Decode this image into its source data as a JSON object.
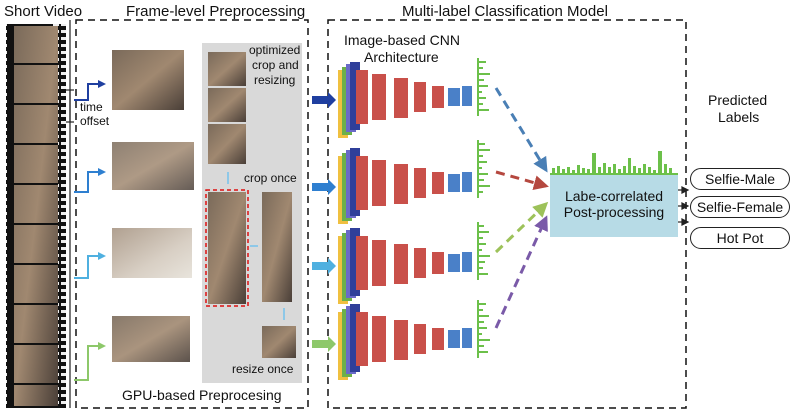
{
  "titles": {
    "short_video": "Short Video",
    "frame_level": "Frame-level Preprocessing",
    "multi_label": "Multi-label Classification Model"
  },
  "preprocessing": {
    "time_offset_line1": "time",
    "time_offset_line2": "offset",
    "optimized_line1": "optimized",
    "optimized_line2": "crop and",
    "optimized_line3": "resizing",
    "crop_once": "crop once",
    "resize_once": "resize once",
    "gpu_label": "GPU-based Preprocesing"
  },
  "model": {
    "cnn_line1": "Image-based CNN",
    "cnn_line2": "Architecture",
    "post_line1": "Labe-correlated",
    "post_line2": "Post-processing"
  },
  "labels": {
    "heading_line1": "Predicted",
    "heading_line2": "Labels",
    "items": [
      "Selfie-Male",
      "Selfie-Female",
      "Hot Pot"
    ]
  },
  "colors": {
    "arrow_row1": "#1f3fa0",
    "arrow_row2": "#2e7fd0",
    "arrow_row3": "#4fb0e0",
    "arrow_row4": "#8dc86a",
    "dash_row1": "#4a7fb5",
    "dash_row2": "#b5483f",
    "dash_row3": "#9dc25a",
    "dash_row4": "#7a5aa8",
    "histogram_green": "#6cc04a",
    "post_box": "#b7dbe6",
    "gray_panel": "#d9d9d9",
    "layer_red": "#c9504a",
    "layer_blue": "#4a80c8"
  }
}
